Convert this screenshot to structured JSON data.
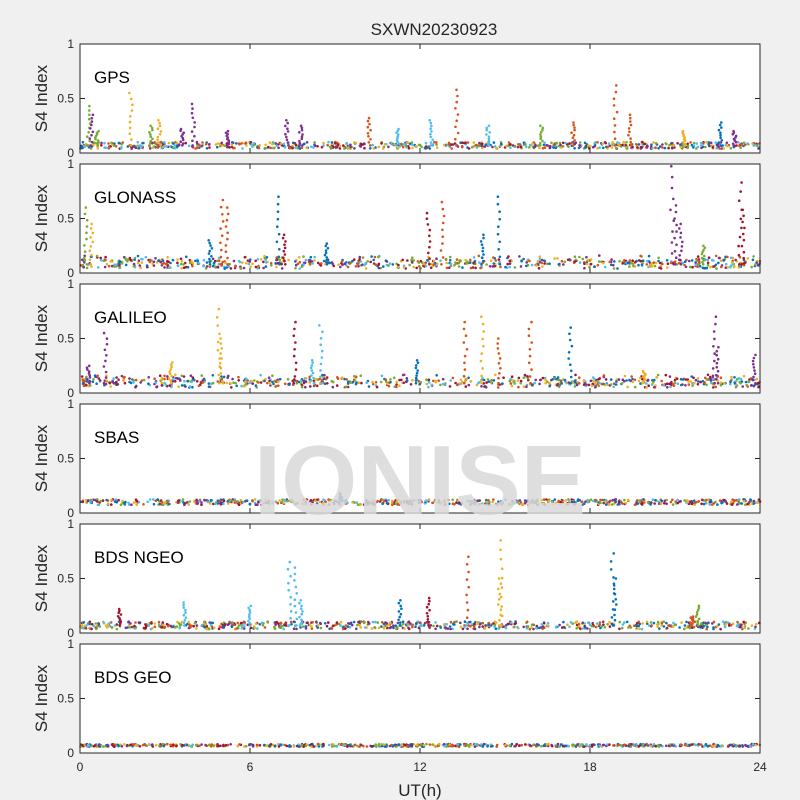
{
  "figure": {
    "title": "SXWN20230923",
    "watermark": "IONISE",
    "xlabel": "UT(h)",
    "colors": [
      "#0072BD",
      "#D95319",
      "#EDB120",
      "#7E2F8E",
      "#77AC30",
      "#4DBEEE",
      "#A2142F"
    ],
    "background": "#f0f0f0"
  },
  "chart_data": [
    {
      "type": "scatter",
      "name": "GPS",
      "label": "GPS",
      "ylabel": "S4 Index",
      "xlim": [
        0,
        24
      ],
      "ylim": [
        0,
        1
      ],
      "xticks": [
        0,
        6,
        12,
        18,
        24
      ],
      "yticks": [
        0,
        0.5,
        1
      ],
      "grid": false,
      "baseline": 0.07,
      "noise": 0.03,
      "spikes": [
        {
          "x": 0.3,
          "y": 0.43,
          "c": 4
        },
        {
          "x": 0.4,
          "y": 0.35,
          "c": 3
        },
        {
          "x": 0.6,
          "y": 0.2,
          "c": 4
        },
        {
          "x": 1.8,
          "y": 0.55,
          "c": 2
        },
        {
          "x": 2.5,
          "y": 0.25,
          "c": 4
        },
        {
          "x": 2.8,
          "y": 0.3,
          "c": 2
        },
        {
          "x": 4.0,
          "y": 0.45,
          "c": 3
        },
        {
          "x": 3.6,
          "y": 0.22,
          "c": 3
        },
        {
          "x": 5.2,
          "y": 0.2,
          "c": 3
        },
        {
          "x": 7.3,
          "y": 0.3,
          "c": 3
        },
        {
          "x": 7.8,
          "y": 0.25,
          "c": 3
        },
        {
          "x": 10.2,
          "y": 0.32,
          "c": 1
        },
        {
          "x": 11.2,
          "y": 0.22,
          "c": 5
        },
        {
          "x": 12.4,
          "y": 0.3,
          "c": 5
        },
        {
          "x": 13.3,
          "y": 0.58,
          "c": 1
        },
        {
          "x": 14.4,
          "y": 0.25,
          "c": 5
        },
        {
          "x": 16.3,
          "y": 0.25,
          "c": 4
        },
        {
          "x": 17.4,
          "y": 0.28,
          "c": 1
        },
        {
          "x": 18.9,
          "y": 0.62,
          "c": 1
        },
        {
          "x": 19.4,
          "y": 0.35,
          "c": 1
        },
        {
          "x": 21.3,
          "y": 0.2,
          "c": 2
        },
        {
          "x": 22.6,
          "y": 0.28,
          "c": 0
        },
        {
          "x": 23.1,
          "y": 0.2,
          "c": 3
        }
      ]
    },
    {
      "type": "scatter",
      "name": "GLONASS",
      "label": "GLONASS",
      "ylabel": "S4 Index",
      "xlim": [
        0,
        24
      ],
      "ylim": [
        0,
        1
      ],
      "xticks": [
        0,
        6,
        12,
        18,
        24
      ],
      "yticks": [
        0,
        0.5,
        1
      ],
      "grid": false,
      "baseline": 0.08,
      "noise": 0.04,
      "spikes": [
        {
          "x": 0.2,
          "y": 0.6,
          "c": 4
        },
        {
          "x": 0.4,
          "y": 0.45,
          "c": 2
        },
        {
          "x": 5.0,
          "y": 0.67,
          "c": 1
        },
        {
          "x": 5.2,
          "y": 0.6,
          "c": 1
        },
        {
          "x": 4.6,
          "y": 0.3,
          "c": 0
        },
        {
          "x": 7.0,
          "y": 0.7,
          "c": 0
        },
        {
          "x": 7.2,
          "y": 0.35,
          "c": 6
        },
        {
          "x": 8.7,
          "y": 0.27,
          "c": 0
        },
        {
          "x": 12.3,
          "y": 0.55,
          "c": 6
        },
        {
          "x": 12.8,
          "y": 0.65,
          "c": 1
        },
        {
          "x": 14.2,
          "y": 0.35,
          "c": 0
        },
        {
          "x": 14.8,
          "y": 0.7,
          "c": 0
        },
        {
          "x": 20.9,
          "y": 0.98,
          "c": 3
        },
        {
          "x": 21.0,
          "y": 0.62,
          "c": 3
        },
        {
          "x": 21.2,
          "y": 0.45,
          "c": 3
        },
        {
          "x": 22.0,
          "y": 0.25,
          "c": 4
        },
        {
          "x": 23.3,
          "y": 0.83,
          "c": 6
        },
        {
          "x": 23.4,
          "y": 0.58,
          "c": 6
        }
      ]
    },
    {
      "type": "scatter",
      "name": "GALILEO",
      "label": "GALILEO",
      "ylabel": "S4 Index",
      "xlim": [
        0,
        24
      ],
      "ylim": [
        0,
        1
      ],
      "xticks": [
        0,
        6,
        12,
        18,
        24
      ],
      "yticks": [
        0,
        0.5,
        1
      ],
      "grid": false,
      "baseline": 0.09,
      "noise": 0.04,
      "spikes": [
        {
          "x": 0.3,
          "y": 0.25,
          "c": 3
        },
        {
          "x": 0.9,
          "y": 0.55,
          "c": 3
        },
        {
          "x": 3.2,
          "y": 0.28,
          "c": 2
        },
        {
          "x": 4.9,
          "y": 0.77,
          "c": 2
        },
        {
          "x": 5.0,
          "y": 0.5,
          "c": 2
        },
        {
          "x": 7.6,
          "y": 0.65,
          "c": 6
        },
        {
          "x": 8.5,
          "y": 0.62,
          "c": 5
        },
        {
          "x": 8.2,
          "y": 0.3,
          "c": 5
        },
        {
          "x": 11.9,
          "y": 0.3,
          "c": 0
        },
        {
          "x": 13.6,
          "y": 0.65,
          "c": 1
        },
        {
          "x": 14.2,
          "y": 0.7,
          "c": 2
        },
        {
          "x": 14.8,
          "y": 0.5,
          "c": 1
        },
        {
          "x": 15.9,
          "y": 0.65,
          "c": 1
        },
        {
          "x": 17.3,
          "y": 0.6,
          "c": 0
        },
        {
          "x": 19.9,
          "y": 0.2,
          "c": 2
        },
        {
          "x": 22.4,
          "y": 0.7,
          "c": 3
        },
        {
          "x": 22.5,
          "y": 0.42,
          "c": 3
        },
        {
          "x": 23.8,
          "y": 0.35,
          "c": 3
        }
      ]
    },
    {
      "type": "scatter",
      "name": "SBAS",
      "label": "SBAS",
      "ylabel": "S4 Index",
      "xlim": [
        0,
        24
      ],
      "ylim": [
        0,
        1
      ],
      "xticks": [
        0,
        6,
        12,
        18,
        24
      ],
      "yticks": [
        0,
        0.5,
        1
      ],
      "grid": false,
      "baseline": 0.1,
      "noise": 0.025,
      "spikes": [
        {
          "x": 9.2,
          "y": 0.18,
          "c": 0
        }
      ]
    },
    {
      "type": "scatter",
      "name": "BDS NGEO",
      "label": "BDS NGEO",
      "ylabel": "S4 Index",
      "xlim": [
        0,
        24
      ],
      "ylim": [
        0,
        1
      ],
      "xticks": [
        0,
        6,
        12,
        18,
        24
      ],
      "yticks": [
        0,
        0.5,
        1
      ],
      "grid": false,
      "baseline": 0.07,
      "noise": 0.035,
      "spikes": [
        {
          "x": 1.4,
          "y": 0.22,
          "c": 6
        },
        {
          "x": 3.7,
          "y": 0.28,
          "c": 5
        },
        {
          "x": 6.0,
          "y": 0.25,
          "c": 5
        },
        {
          "x": 7.4,
          "y": 0.65,
          "c": 5
        },
        {
          "x": 7.6,
          "y": 0.6,
          "c": 5
        },
        {
          "x": 7.8,
          "y": 0.3,
          "c": 5
        },
        {
          "x": 11.3,
          "y": 0.3,
          "c": 0
        },
        {
          "x": 12.3,
          "y": 0.32,
          "c": 6
        },
        {
          "x": 13.7,
          "y": 0.7,
          "c": 1
        },
        {
          "x": 14.9,
          "y": 0.85,
          "c": 2
        },
        {
          "x": 14.8,
          "y": 0.5,
          "c": 2
        },
        {
          "x": 18.8,
          "y": 0.73,
          "c": 0
        },
        {
          "x": 18.9,
          "y": 0.5,
          "c": 0
        },
        {
          "x": 21.8,
          "y": 0.25,
          "c": 4
        },
        {
          "x": 21.6,
          "y": 0.15,
          "c": 1
        }
      ]
    },
    {
      "type": "scatter",
      "name": "BDS GEO",
      "label": "BDS GEO",
      "ylabel": "S4 Index",
      "xlim": [
        0,
        24
      ],
      "ylim": [
        0,
        1
      ],
      "xticks": [
        0,
        6,
        12,
        18,
        24
      ],
      "yticks": [
        0,
        0.5,
        1
      ],
      "grid": false,
      "baseline": 0.07,
      "noise": 0.012,
      "spikes": []
    }
  ]
}
